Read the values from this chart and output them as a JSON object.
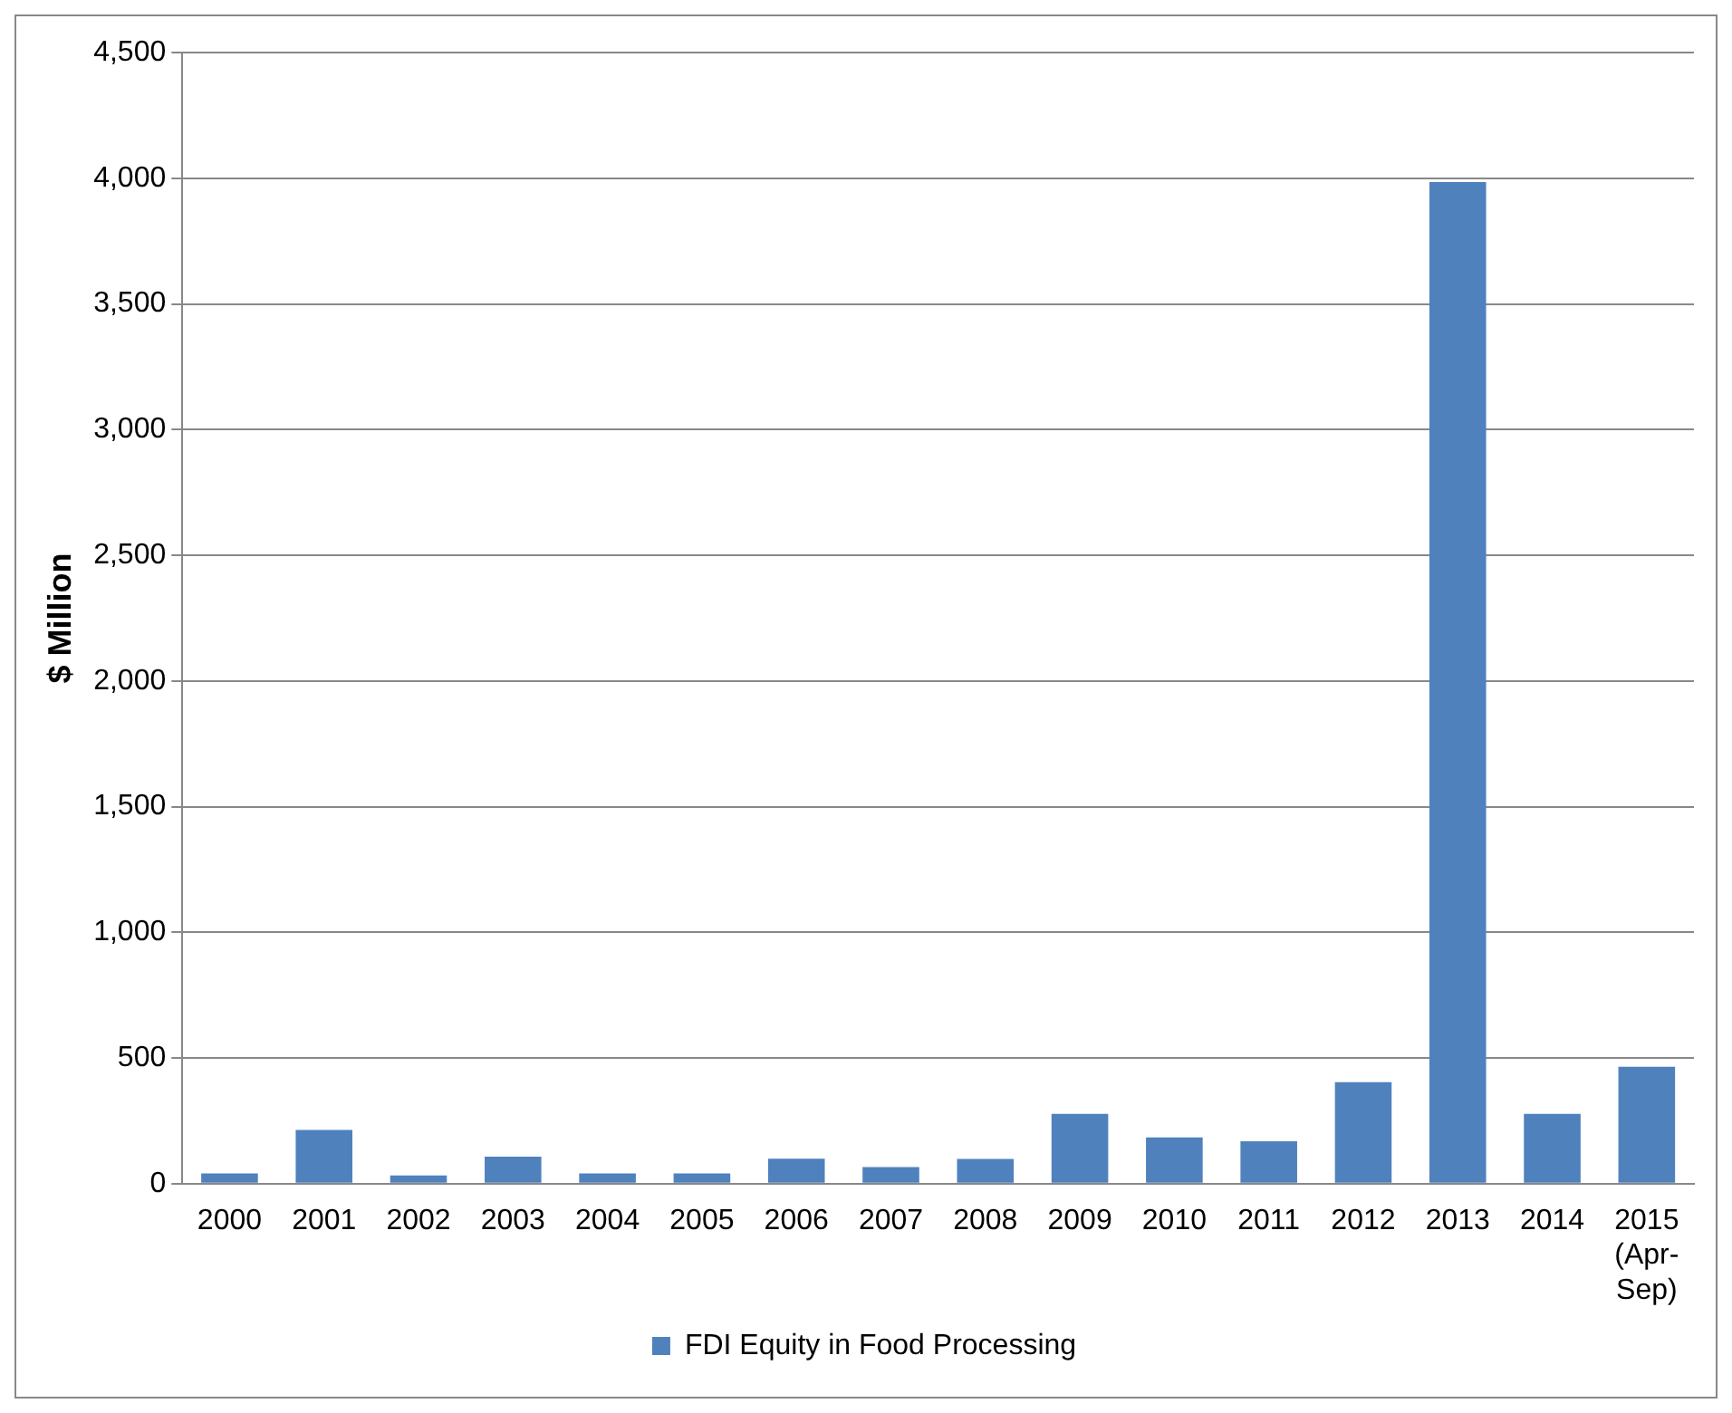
{
  "chart_data": {
    "type": "bar",
    "ylabel": "$ Million",
    "categories": [
      "2000",
      "2001",
      "2002",
      "2003",
      "2004",
      "2005",
      "2006",
      "2007",
      "2008",
      "2009",
      "2010",
      "2011",
      "2012",
      "2013",
      "2014",
      "2015\n(Apr-\nSep)"
    ],
    "series": [
      {
        "name": "FDI Equity in Food Processing",
        "color": "#4f81bd",
        "values": [
          41,
          214,
          33,
          107,
          41,
          41,
          99,
          66,
          98,
          278,
          184,
          169,
          404,
          3985,
          278,
          465
        ]
      }
    ],
    "ylim": [
      0,
      4500
    ],
    "yticks": [
      {
        "value": 0,
        "label": "0"
      },
      {
        "value": 500,
        "label": "500"
      },
      {
        "value": 1000,
        "label": "1,000"
      },
      {
        "value": 1500,
        "label": "1,500"
      },
      {
        "value": 2000,
        "label": "2,000"
      },
      {
        "value": 2500,
        "label": "2,500"
      },
      {
        "value": 3000,
        "label": "3,000"
      },
      {
        "value": 3500,
        "label": "3,500"
      },
      {
        "value": 4000,
        "label": "4,000"
      },
      {
        "value": 4500,
        "label": "4,500"
      }
    ],
    "grid": "y",
    "legend": "bottom"
  }
}
